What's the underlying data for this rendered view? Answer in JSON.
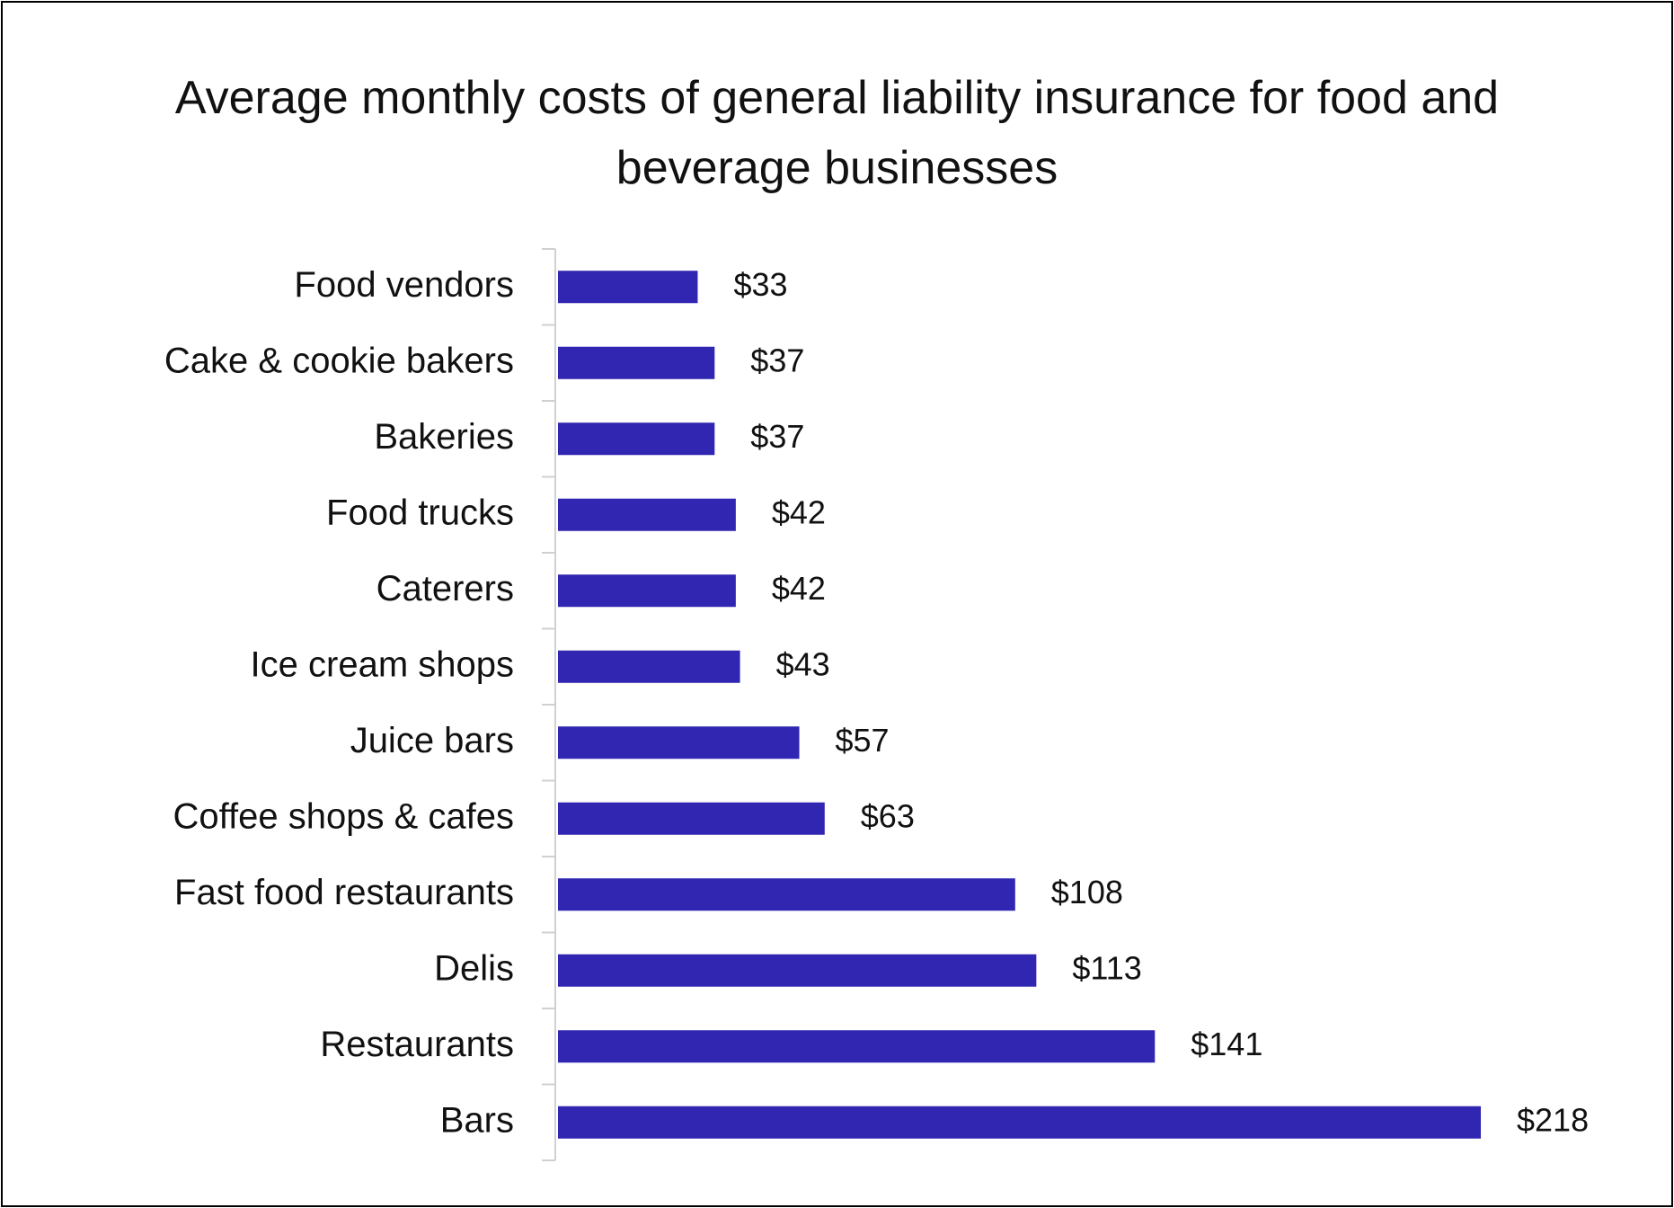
{
  "chart_data": {
    "type": "bar",
    "orientation": "horizontal",
    "title": "Average monthly costs of general liability insurance for food and beverage businesses",
    "categories": [
      "Food vendors",
      "Cake & cookie bakers",
      "Bakeries",
      "Food trucks",
      "Caterers",
      "Ice cream shops",
      "Juice bars",
      "Coffee shops & cafes",
      "Fast food restaurants",
      "Delis",
      "Restaurants",
      "Bars"
    ],
    "values": [
      33,
      37,
      37,
      42,
      42,
      43,
      57,
      63,
      108,
      113,
      141,
      218
    ],
    "value_labels": [
      "$33",
      "$37",
      "$37",
      "$42",
      "$42",
      "$43",
      "$57",
      "$63",
      "$108",
      "$113",
      "$141",
      "$218"
    ],
    "color": "#3126b1"
  }
}
